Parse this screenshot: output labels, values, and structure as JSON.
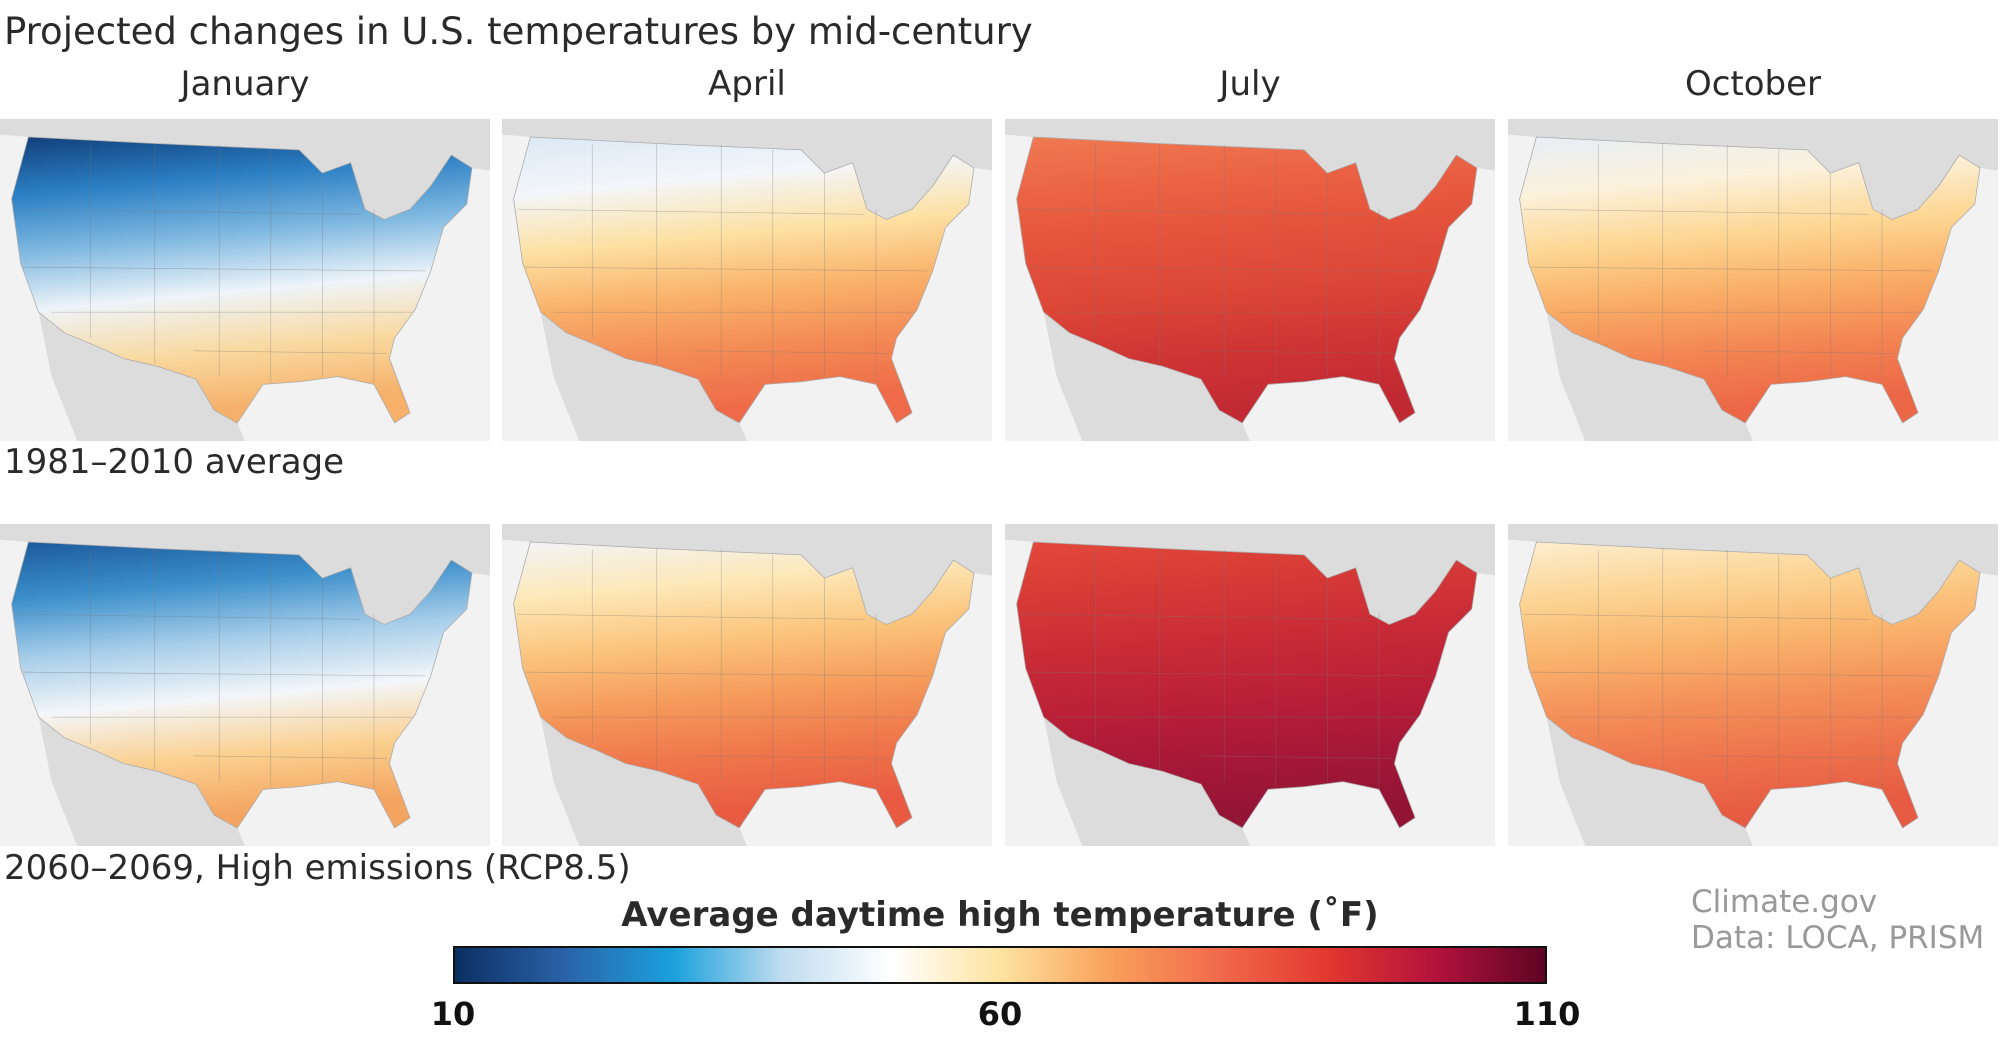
{
  "title": "Projected changes in U.S. temperatures by mid-century",
  "months": [
    "January",
    "April",
    "July",
    "October"
  ],
  "rows": [
    {
      "label": "1981–2010 average"
    },
    {
      "label": "2060–2069, High emissions (RCP8.5)"
    }
  ],
  "credits": {
    "line1": "Climate.gov",
    "line2": "Data: LOCA, PRISM"
  },
  "chart_data": {
    "type": "heatmap",
    "title": "Average daytime high temperature (˚F)",
    "colorbar": {
      "range": [
        10,
        110
      ],
      "ticks": [
        "10",
        "60",
        "110"
      ],
      "colors": [
        "#0b2f63",
        "#2a62a8",
        "#1aa0dc",
        "#bfdcef",
        "#ffffff",
        "#fde3a0",
        "#f9a15a",
        "#f26a4c",
        "#e2382e",
        "#b3123c",
        "#5e0424"
      ]
    },
    "panels": [
      {
        "period": "1981–2010 average",
        "month": "January",
        "colors": [
          "#123f7a",
          "#2b7fc4",
          "#7fb8e0",
          "#eef4f9",
          "#f9d9a0",
          "#f6b06a"
        ]
      },
      {
        "period": "1981–2010 average",
        "month": "April",
        "colors": [
          "#dbe8f4",
          "#f3f6fa",
          "#fde1a4",
          "#f9b26a",
          "#f38a55",
          "#ee6a48"
        ]
      },
      {
        "period": "1981–2010 average",
        "month": "July",
        "colors": [
          "#f07a52",
          "#eb6444",
          "#e4523c",
          "#dc4637",
          "#cf3434",
          "#c22a33"
        ]
      },
      {
        "period": "1981–2010 average",
        "month": "October",
        "colors": [
          "#e6eef7",
          "#fbf1dc",
          "#fdd793",
          "#f9ad66",
          "#f38553",
          "#ec6746"
        ]
      },
      {
        "period": "2060–2069, High emissions (RCP8.5)",
        "month": "January",
        "colors": [
          "#1c5a9c",
          "#3c8fcb",
          "#a6cde9",
          "#f3f6f9",
          "#fbd08f",
          "#f4a461"
        ]
      },
      {
        "period": "2060–2069, High emissions (RCP8.5)",
        "month": "April",
        "colors": [
          "#f1f4f8",
          "#fde8b8",
          "#fbc47c",
          "#f59a5b",
          "#ef764b",
          "#e85a41"
        ]
      },
      {
        "period": "2060–2069, High emissions (RCP8.5)",
        "month": "July",
        "colors": [
          "#e2493a",
          "#d63a36",
          "#c92c36",
          "#bb2037",
          "#a81838",
          "#941435"
        ]
      },
      {
        "period": "2060–2069, High emissions (RCP8.5)",
        "month": "October",
        "colors": [
          "#fdeed0",
          "#fcd595",
          "#f9b56d",
          "#f4915a",
          "#ee744c",
          "#e65b42"
        ]
      }
    ]
  }
}
